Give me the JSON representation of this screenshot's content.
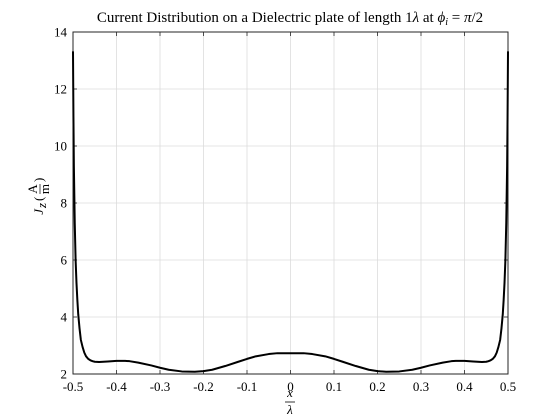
{
  "chart_data": {
    "type": "line",
    "title": "Current Distribution on a Dielectric plate of length 1λ at ϕᵢ = π/2",
    "xlabel": "x/λ",
    "ylabel": "J_z (A/m)",
    "xlim": [
      -0.5,
      0.5
    ],
    "ylim": [
      2,
      14
    ],
    "xticks": [
      "-0.5",
      "-0.4",
      "-0.3",
      "-0.2",
      "-0.1",
      "0",
      "0.1",
      "0.2",
      "0.3",
      "0.4",
      "0.5"
    ],
    "yticks": [
      "2",
      "4",
      "6",
      "8",
      "10",
      "12",
      "14"
    ],
    "grid": true,
    "series": [
      {
        "color": "#000000",
        "x": [
          -0.5,
          -0.499,
          -0.498,
          -0.496,
          -0.494,
          -0.492,
          -0.49,
          -0.488,
          -0.485,
          -0.482,
          -0.478,
          -0.474,
          -0.47,
          -0.465,
          -0.46,
          -0.455,
          -0.45,
          -0.44,
          -0.43,
          -0.42,
          -0.4,
          -0.38,
          -0.37,
          -0.35,
          -0.32,
          -0.3,
          -0.28,
          -0.25,
          -0.22,
          -0.2,
          -0.18,
          -0.15,
          -0.12,
          -0.1,
          -0.08,
          -0.05,
          -0.03,
          0,
          0.03,
          0.05,
          0.08,
          0.1,
          0.12,
          0.15,
          0.18,
          0.2,
          0.22,
          0.25,
          0.28,
          0.3,
          0.32,
          0.35,
          0.37,
          0.38,
          0.4,
          0.42,
          0.43,
          0.44,
          0.45,
          0.455,
          0.46,
          0.465,
          0.47,
          0.474,
          0.478,
          0.482,
          0.485,
          0.488,
          0.49,
          0.492,
          0.494,
          0.496,
          0.498,
          0.499,
          0.5
        ],
        "y": [
          13.3,
          11.0,
          9.3,
          7.3,
          6.0,
          5.2,
          4.6,
          4.1,
          3.6,
          3.2,
          2.95,
          2.75,
          2.62,
          2.53,
          2.48,
          2.45,
          2.43,
          2.42,
          2.43,
          2.44,
          2.46,
          2.46,
          2.45,
          2.4,
          2.3,
          2.22,
          2.15,
          2.09,
          2.08,
          2.1,
          2.15,
          2.28,
          2.43,
          2.53,
          2.62,
          2.7,
          2.73,
          2.73,
          2.73,
          2.7,
          2.62,
          2.53,
          2.43,
          2.28,
          2.15,
          2.1,
          2.08,
          2.09,
          2.15,
          2.22,
          2.3,
          2.4,
          2.45,
          2.46,
          2.46,
          2.44,
          2.43,
          2.42,
          2.43,
          2.45,
          2.48,
          2.53,
          2.62,
          2.75,
          2.95,
          3.2,
          3.6,
          4.1,
          4.6,
          5.2,
          6.0,
          7.3,
          9.3,
          11.0,
          13.3
        ]
      }
    ]
  }
}
